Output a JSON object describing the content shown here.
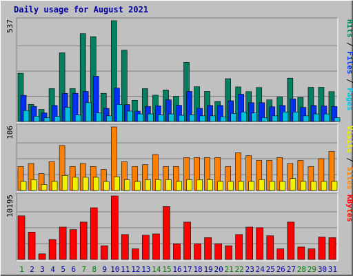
{
  "chart_data": {
    "type": "bar",
    "title": "Daily usage for August 2021",
    "categories": [
      "1",
      "2",
      "3",
      "4",
      "5",
      "6",
      "7",
      "8",
      "9",
      "10",
      "11",
      "12",
      "13",
      "14",
      "15",
      "16",
      "17",
      "18",
      "19",
      "20",
      "21",
      "22",
      "23",
      "24",
      "25",
      "26",
      "27",
      "28",
      "29",
      "30",
      "31"
    ],
    "weekend_days": [
      "1",
      "7",
      "8",
      "14",
      "15",
      "21",
      "22",
      "28",
      "29"
    ],
    "panels": [
      {
        "name": "hits-files-pages",
        "ymax_label": "537",
        "ymax": 537,
        "grid": true,
        "legend_right": [
          {
            "name": "Pages",
            "color": "#00c0e0"
          },
          {
            "name": "Files",
            "color": "#0030f0"
          },
          {
            "name": "Hits",
            "color": "#008060"
          }
        ],
        "series": [
          {
            "name": "Hits",
            "color": "#008060",
            "values": [
              257,
              91,
              64,
              175,
              366,
              175,
              468,
              452,
              150,
              537,
              380,
              113,
              175,
              140,
              168,
              134,
              315,
              185,
              160,
              107,
              228,
              184,
              159,
              181,
              115,
              130,
              231,
              128,
              182,
              182,
              159
            ]
          },
          {
            "name": "Files",
            "color": "#0030f0",
            "values": [
              139,
              80,
              45,
              85,
              150,
              150,
              160,
              241,
              70,
              178,
              90,
              55,
              80,
              83,
              115,
              86,
              160,
              70,
              85,
              85,
              110,
              145,
              100,
              100,
              78,
              85,
              120,
              75,
              85,
              82,
              80
            ]
          },
          {
            "name": "Pages",
            "color": "#00c0e0",
            "values": [
              58,
              28,
              20,
              27,
              75,
              35,
              100,
              45,
              30,
              91,
              55,
              40,
              40,
              35,
              40,
              33,
              35,
              30,
              30,
              25,
              43,
              50,
              45,
              20,
              30,
              50,
              50,
              30,
              40,
              40,
              20
            ]
          }
        ]
      },
      {
        "name": "visits-sites",
        "ymax_label": "106",
        "ymax": 106,
        "grid": true,
        "legend_right": [
          {
            "name": "Sites",
            "color": "#ff8000"
          },
          {
            "name": "Visits",
            "color": "#f0f000"
          }
        ],
        "series": [
          {
            "name": "Sites",
            "color": "#ff8000",
            "values": [
              40,
              45,
              28,
              48,
              75,
              40,
              45,
              40,
              35,
              106,
              48,
              40,
              43,
              60,
              40,
              40,
              55,
              55,
              55,
              55,
              40,
              63,
              58,
              50,
              50,
              55,
              45,
              50,
              40,
              53,
              65
            ]
          },
          {
            "name": "Visits",
            "color": "#f0f000",
            "values": [
              15,
              18,
              10,
              15,
              25,
              22,
              22,
              22,
              15,
              23,
              18,
              15,
              18,
              18,
              18,
              15,
              18,
              18,
              18,
              15,
              15,
              15,
              15,
              18,
              15,
              15,
              20,
              15,
              15,
              15,
              15
            ]
          }
        ]
      },
      {
        "name": "kbytes",
        "ymax_label": "10195",
        "ymax": 10195,
        "grid": true,
        "legend_right": [
          {
            "name": "KBytes",
            "color": "#ff0000"
          }
        ],
        "series": [
          {
            "name": "KBytes",
            "color": "#ff0000",
            "values": [
              7000,
              4400,
              900,
              3200,
              5200,
              4800,
              6000,
              8300,
              2200,
              10195,
              4000,
              1700,
              3900,
              4100,
              8500,
              2500,
              6000,
              2500,
              3500,
              2500,
              2200,
              4000,
              5200,
              5100,
              3800,
              1700,
              6000,
              2000,
              1700,
              3600,
              3500
            ]
          }
        ]
      }
    ],
    "colors": {
      "background": "#c0c0c0",
      "plot": "#c0c0c0",
      "title": "#0000a0",
      "weekday_label": "#0000a0",
      "weekend_label": "#008000",
      "grid": "#808080"
    }
  }
}
